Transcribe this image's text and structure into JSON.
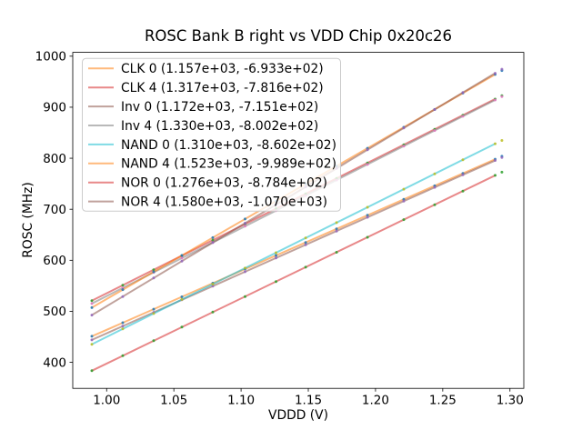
{
  "figure": {
    "background": "#ffffff"
  },
  "chart_data": {
    "type": "scatter",
    "title": "ROSC Bank B right vs VDD Chip 0x20c26",
    "xlabel": "VDDD (V)",
    "ylabel": "ROSC (MHz)",
    "xlim": [
      0.9748,
      1.3103
    ],
    "ylim": [
      349,
      1007.5
    ],
    "xticks": [
      1.0,
      1.05,
      1.1,
      1.15,
      1.2,
      1.25,
      1.3
    ],
    "xtick_labels": [
      "1.00",
      "1.05",
      "1.10",
      "1.15",
      "1.20",
      "1.25",
      "1.30"
    ],
    "yticks": [
      400,
      500,
      600,
      700,
      800,
      900,
      1000
    ],
    "ytick_labels": [
      "400",
      "500",
      "600",
      "700",
      "800",
      "900",
      "1000"
    ],
    "grid": false,
    "legend_position": "upper left",
    "legend_border_color": "#cccccc",
    "x": [
      0.989,
      1.012,
      1.035,
      1.056,
      1.079,
      1.103,
      1.126,
      1.148,
      1.171,
      1.194,
      1.221,
      1.244,
      1.265,
      1.289,
      1.294
    ],
    "fit_line_x": [
      0.989,
      1.289
    ],
    "series": [
      {
        "name": "CLK 0",
        "legend_label": "CLK 0 (1.157e+03, -6.933e+02)",
        "fit_slope": 1157.0,
        "fit_intercept": -693.3,
        "line_color": "#ff7f0e",
        "line_alpha": 0.55,
        "marker_color": "#1f77b4",
        "y": [
          451.0,
          477.6,
          504.2,
          528.5,
          555.1,
          582.9,
          609.5,
          634.9,
          661.5,
          688.2,
          719.4,
          746.0,
          770.3,
          798.1,
          803.9
        ]
      },
      {
        "name": "CLK 4",
        "legend_label": "CLK 4 (1.317e+03, -7.816e+02)",
        "fit_slope": 1317.0,
        "fit_intercept": -781.6,
        "line_color": "#d62728",
        "line_alpha": 0.55,
        "marker_color": "#2ca02c",
        "y": [
          520.9,
          551.2,
          581.5,
          609.2,
          639.4,
          671.1,
          701.3,
          730.3,
          760.6,
          790.9,
          826.5,
          856.7,
          884.4,
          916.0,
          922.6
        ]
      },
      {
        "name": "Inv 0",
        "legend_label": "Inv 0 (1.172e+03, -7.151e+02)",
        "fit_slope": 1172.0,
        "fit_intercept": -715.1,
        "line_color": "#8c564b",
        "line_alpha": 0.55,
        "marker_color": "#9467bd",
        "y": [
          444.0,
          471.0,
          497.9,
          522.5,
          549.5,
          577.6,
          604.6,
          630.4,
          657.3,
          684.3,
          715.9,
          742.9,
          767.5,
          795.6,
          801.5
        ]
      },
      {
        "name": "Inv 4",
        "legend_label": "Inv 4 (1.330e+03, -8.002e+02)",
        "fit_slope": 1330.0,
        "fit_intercept": -800.2,
        "line_color": "#7f7f7f",
        "line_alpha": 0.55,
        "marker_color": "#e377c2",
        "y": [
          515.2,
          545.8,
          576.4,
          604.3,
          634.9,
          666.8,
          697.4,
          726.6,
          757.2,
          787.8,
          823.7,
          854.3,
          882.3,
          914.2,
          920.8
        ]
      },
      {
        "name": "NAND 0",
        "legend_label": "NAND 0 (1.310e+03, -8.602e+02)",
        "fit_slope": 1310.0,
        "fit_intercept": -860.2,
        "line_color": "#17becf",
        "line_alpha": 0.55,
        "marker_color": "#bcbd22",
        "y": [
          435.4,
          465.5,
          495.7,
          523.2,
          553.3,
          584.7,
          614.9,
          643.7,
          673.8,
          703.9,
          739.3,
          769.4,
          797.0,
          828.4,
          834.9
        ]
      },
      {
        "name": "NAND 4",
        "legend_label": "NAND 4 (1.523e+03, -9.989e+02)",
        "fit_slope": 1523.0,
        "fit_intercept": -998.9,
        "line_color": "#ff7f0e",
        "line_alpha": 0.55,
        "marker_color": "#1f77b4",
        "y": [
          507.3,
          542.4,
          577.4,
          609.4,
          644.4,
          681.0,
          716.0,
          749.5,
          784.5,
          819.6,
          860.7,
          895.7,
          927.7,
          964.2,
          971.9
        ]
      },
      {
        "name": "NOR 0",
        "legend_label": "NOR 0 (1.276e+03, -8.784e+02)",
        "fit_slope": 1276.0,
        "fit_intercept": -878.4,
        "line_color": "#d62728",
        "line_alpha": 0.55,
        "marker_color": "#2ca02c",
        "y": [
          383.6,
          412.9,
          442.3,
          469.1,
          498.4,
          529.0,
          558.4,
          586.5,
          615.8,
          645.1,
          679.6,
          708.9,
          735.7,
          766.4,
          772.7
        ]
      },
      {
        "name": "NOR 4",
        "legend_label": "NOR 4 (1.580e+03, -1.070e+03)",
        "fit_slope": 1580.0,
        "fit_intercept": -1070.0,
        "line_color": "#8c564b",
        "line_alpha": 0.55,
        "marker_color": "#9467bd",
        "y": [
          492.6,
          529.0,
          565.3,
          598.5,
          634.8,
          672.7,
          709.1,
          743.8,
          780.2,
          816.5,
          859.2,
          895.5,
          928.7,
          966.6,
          974.5
        ]
      }
    ]
  }
}
